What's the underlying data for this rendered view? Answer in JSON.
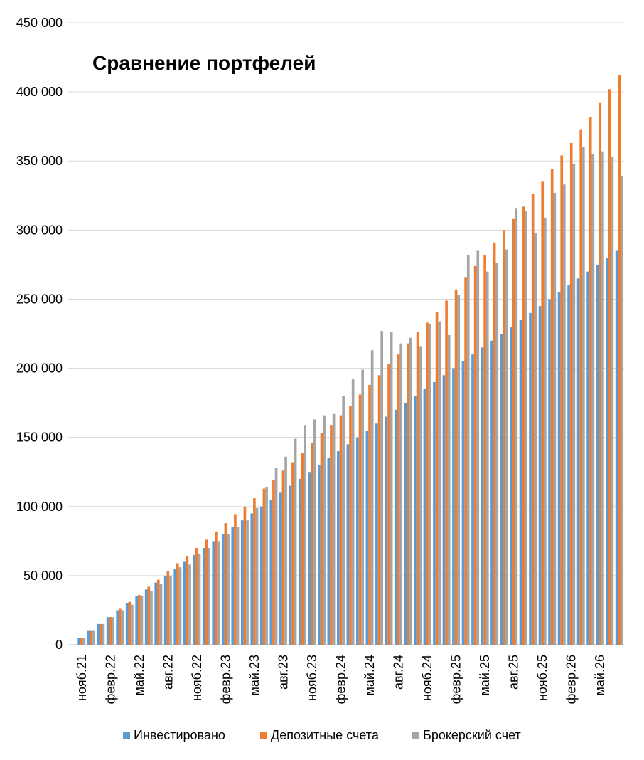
{
  "chart_data": {
    "type": "bar",
    "title": "Сравнение портфелей",
    "categories": [
      "нояб.21",
      null,
      null,
      "февр.22",
      null,
      null,
      "май.22",
      null,
      null,
      "авг.22",
      null,
      null,
      "нояб.22",
      null,
      null,
      "февр.23",
      null,
      null,
      "май.23",
      null,
      null,
      "авг.23",
      null,
      null,
      "нояб.23",
      null,
      null,
      "февр.24",
      null,
      null,
      "май.24",
      null,
      null,
      "авг.24",
      null,
      null,
      "нояб.24",
      null,
      null,
      "февр.25",
      null,
      null,
      "май.25",
      null,
      null,
      "авг.25",
      null,
      null,
      "нояб.25",
      null,
      null,
      "февр.26",
      null,
      null,
      "май.26",
      null,
      null
    ],
    "series": [
      {
        "name": "Инвестировано",
        "color": "#5b9bd5",
        "values": [
          5000,
          10000,
          15000,
          20000,
          25000,
          30000,
          35000,
          40000,
          45000,
          50000,
          55000,
          60000,
          65000,
          70000,
          75000,
          80000,
          85000,
          90000,
          95000,
          100000,
          105000,
          110000,
          115000,
          120000,
          125000,
          130000,
          135000,
          140000,
          145000,
          150000,
          155000,
          160000,
          165000,
          170000,
          175000,
          180000,
          185000,
          190000,
          195000,
          200000,
          205000,
          210000,
          215000,
          220000,
          225000,
          230000,
          235000,
          240000,
          245000,
          250000,
          255000,
          260000,
          265000,
          270000,
          275000,
          280000,
          285000
        ]
      },
      {
        "name": "Депозитные счета",
        "color": "#ed7d31",
        "values": [
          5000,
          10000,
          15000,
          20000,
          26000,
          31000,
          36000,
          42000,
          47000,
          53000,
          59000,
          64000,
          70000,
          76000,
          82000,
          88000,
          94000,
          100000,
          106000,
          113000,
          119000,
          126000,
          132000,
          139000,
          146000,
          153000,
          159000,
          166000,
          173000,
          181000,
          188000,
          195000,
          203000,
          210000,
          218000,
          226000,
          233000,
          241000,
          249000,
          257000,
          266000,
          274000,
          282000,
          291000,
          300000,
          308000,
          317000,
          326000,
          335000,
          344000,
          354000,
          363000,
          373000,
          382000,
          392000,
          402000,
          412000
        ]
      },
      {
        "name": "Брокерский счет",
        "color": "#a5a5a5",
        "values": [
          5000,
          10000,
          15000,
          20000,
          25000,
          29000,
          35000,
          39000,
          44000,
          50000,
          56000,
          58000,
          66000,
          70000,
          75000,
          80000,
          85000,
          90000,
          99000,
          114000,
          128000,
          136000,
          149000,
          159000,
          163000,
          166000,
          167000,
          180000,
          192000,
          199000,
          213000,
          227000,
          226000,
          218000,
          222000,
          216000,
          232000,
          234000,
          224000,
          253000,
          282000,
          285000,
          270000,
          276000,
          286000,
          316000,
          314000,
          298000,
          309000,
          327000,
          333000,
          348000,
          360000,
          355000,
          357000,
          353000,
          339000
        ]
      }
    ],
    "ylim": [
      0,
      450000
    ],
    "yticks": [
      0,
      {
        "value": 50000,
        "label": "50 000"
      },
      {
        "value": 100000,
        "label": "100 000"
      },
      {
        "value": 150000,
        "label": "150 000"
      },
      {
        "value": 200000,
        "label": "200 000"
      },
      {
        "value": 250000,
        "label": "250 000"
      },
      {
        "value": 300000,
        "label": "300 000"
      },
      {
        "value": 350000,
        "label": "350 000"
      },
      {
        "value": 400000,
        "label": "400 000"
      },
      {
        "value": 450000,
        "label": "450 000"
      }
    ],
    "grid": true,
    "legend": "bottom"
  }
}
